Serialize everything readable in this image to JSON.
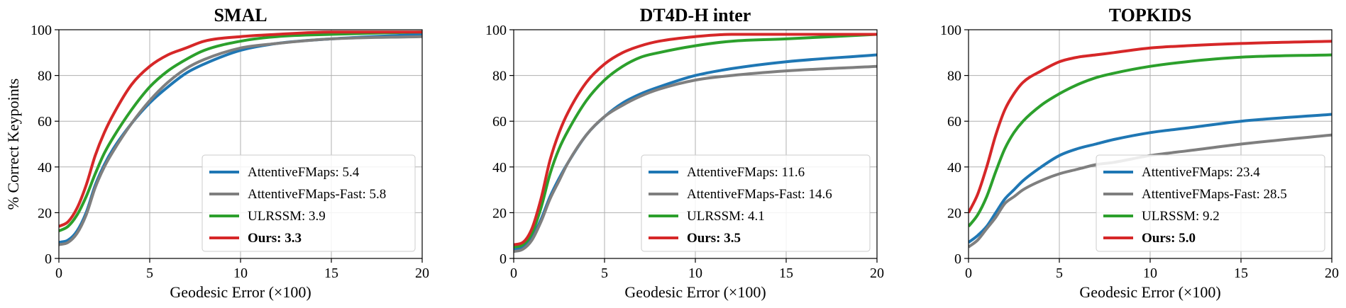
{
  "colors": {
    "AttentiveFMaps": "#1f77b4",
    "AttentiveFMaps-Fast": "#7f7f7f",
    "ULRSSM": "#2ca02c",
    "Ours": "#d62728"
  },
  "chart_data": [
    {
      "type": "line",
      "title": "SMAL",
      "xlabel": "Geodesic Error (×100)",
      "ylabel": "% Correct Keypoints",
      "xlim": [
        0,
        20
      ],
      "ylim": [
        0,
        100
      ],
      "xticks": [
        "0",
        "5",
        "10",
        "15",
        "20"
      ],
      "yticks": [
        "0",
        "20",
        "40",
        "60",
        "80",
        "100"
      ],
      "grid": true,
      "legend_position": "lower-right",
      "x": [
        0,
        0.5,
        1,
        1.5,
        2,
        2.5,
        3,
        4,
        5,
        6,
        7,
        8,
        10,
        12,
        15,
        20
      ],
      "series": [
        {
          "name": "AttentiveFMaps",
          "legend": "AttentiveFMaps: 5.4",
          "bold": false,
          "color_key": "AttentiveFMaps",
          "values": [
            7,
            8,
            12,
            20,
            32,
            41,
            48,
            59,
            68,
            75,
            81,
            85,
            91,
            94,
            96,
            98
          ]
        },
        {
          "name": "AttentiveFMaps-Fast",
          "legend": "AttentiveFMaps-Fast: 5.8",
          "bold": false,
          "color_key": "AttentiveFMaps-Fast",
          "values": [
            6,
            7,
            11,
            19,
            31,
            40,
            47,
            59,
            69,
            77,
            83,
            87,
            92,
            94,
            96,
            97
          ]
        },
        {
          "name": "ULRSSM",
          "legend": "ULRSSM: 3.9",
          "bold": false,
          "color_key": "ULRSSM",
          "values": [
            12,
            14,
            19,
            27,
            37,
            46,
            53,
            65,
            75,
            82,
            87,
            91,
            95,
            97,
            98,
            99
          ]
        },
        {
          "name": "Ours",
          "legend": "Ours: 3.3",
          "bold": true,
          "color_key": "Ours",
          "values": [
            14,
            16,
            22,
            32,
            45,
            55,
            63,
            76,
            84,
            89,
            92,
            95,
            97,
            98,
            99,
            99
          ]
        }
      ]
    },
    {
      "type": "line",
      "title": "DT4D-H inter",
      "xlabel": "Geodesic Error (×100)",
      "ylabel": "",
      "xlim": [
        0,
        20
      ],
      "ylim": [
        0,
        100
      ],
      "xticks": [
        "0",
        "5",
        "10",
        "15",
        "20"
      ],
      "yticks": [
        "0",
        "20",
        "40",
        "60",
        "80",
        "100"
      ],
      "grid": true,
      "legend_position": "lower-right",
      "x": [
        0,
        0.5,
        1,
        1.5,
        2,
        2.5,
        3,
        4,
        5,
        6,
        7,
        8,
        10,
        12,
        15,
        20
      ],
      "series": [
        {
          "name": "AttentiveFMaps",
          "legend": "AttentiveFMaps: 11.6",
          "bold": false,
          "color_key": "AttentiveFMaps",
          "values": [
            4,
            5,
            9,
            17,
            27,
            35,
            42,
            54,
            62,
            68,
            72,
            75,
            80,
            83,
            86,
            89
          ]
        },
        {
          "name": "AttentiveFMaps-Fast",
          "legend": "AttentiveFMaps-Fast: 14.6",
          "bold": false,
          "color_key": "AttentiveFMaps-Fast",
          "values": [
            3,
            4,
            8,
            16,
            26,
            34,
            42,
            54,
            62,
            67,
            71,
            74,
            78,
            80,
            82,
            84
          ]
        },
        {
          "name": "ULRSSM",
          "legend": "ULRSSM: 4.1",
          "bold": false,
          "color_key": "ULRSSM",
          "values": [
            5,
            6,
            11,
            22,
            37,
            48,
            56,
            69,
            78,
            84,
            88,
            90,
            93,
            95,
            96,
            98
          ]
        },
        {
          "name": "Ours",
          "legend": "Ours: 3.5",
          "bold": true,
          "color_key": "Ours",
          "values": [
            6,
            7,
            13,
            26,
            43,
            55,
            64,
            77,
            85,
            90,
            93,
            95,
            97,
            98,
            98,
            98
          ]
        }
      ]
    },
    {
      "type": "line",
      "title": "TOPKIDS",
      "xlabel": "Geodesic Error (×100)",
      "ylabel": "",
      "xlim": [
        0,
        20
      ],
      "ylim": [
        0,
        100
      ],
      "xticks": [
        "0",
        "5",
        "10",
        "15",
        "20"
      ],
      "yticks": [
        "0",
        "20",
        "40",
        "60",
        "80",
        "100"
      ],
      "grid": true,
      "legend_position": "lower-right",
      "x": [
        0,
        0.5,
        1,
        1.5,
        2,
        2.5,
        3,
        4,
        5,
        6,
        7,
        8,
        10,
        12,
        15,
        20
      ],
      "series": [
        {
          "name": "AttentiveFMaps",
          "legend": "AttentiveFMaps: 23.4",
          "bold": false,
          "color_key": "AttentiveFMaps",
          "values": [
            7,
            10,
            14,
            20,
            26,
            30,
            34,
            40,
            45,
            48,
            50,
            52,
            55,
            57,
            60,
            63
          ]
        },
        {
          "name": "AttentiveFMaps-Fast",
          "legend": "AttentiveFMaps-Fast: 28.5",
          "bold": false,
          "color_key": "AttentiveFMaps-Fast",
          "values": [
            5,
            8,
            13,
            18,
            24,
            27,
            30,
            34,
            37,
            39,
            41,
            42,
            45,
            47,
            50,
            54
          ]
        },
        {
          "name": "ULRSSM",
          "legend": "ULRSSM: 9.2",
          "bold": false,
          "color_key": "ULRSSM",
          "values": [
            14,
            19,
            27,
            38,
            48,
            55,
            60,
            67,
            72,
            76,
            79,
            81,
            84,
            86,
            88,
            89
          ]
        },
        {
          "name": "Ours",
          "legend": "Ours: 5.0",
          "bold": true,
          "color_key": "Ours",
          "values": [
            20,
            28,
            40,
            54,
            65,
            72,
            77,
            82,
            86,
            88,
            89,
            90,
            92,
            93,
            94,
            95
          ]
        }
      ]
    }
  ]
}
